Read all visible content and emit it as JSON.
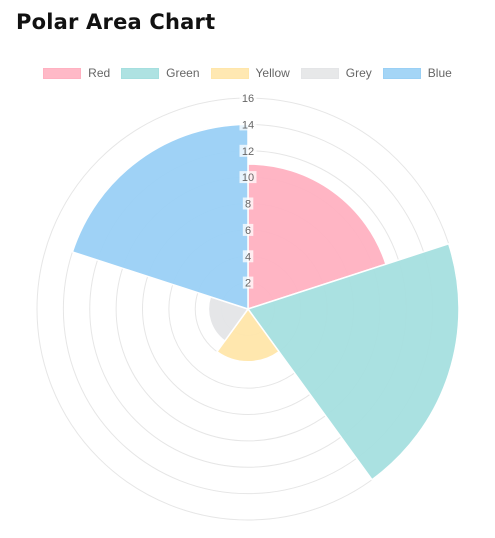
{
  "page": {
    "title": "Polar Area Chart"
  },
  "legend": [
    {
      "label": "Red",
      "color": "#ffb1c1"
    },
    {
      "label": "Green",
      "color": "#a5dfdf"
    },
    {
      "label": "Yellow",
      "color": "#ffe6aa"
    },
    {
      "label": "Grey",
      "color": "#e4e5e7"
    },
    {
      "label": "Blue",
      "color": "#9ad0f5"
    }
  ],
  "chart_data": {
    "type": "polar-area",
    "title": "Polar Area Chart",
    "categories": [
      "Red",
      "Green",
      "Yellow",
      "Grey",
      "Blue"
    ],
    "values": [
      11,
      16,
      4,
      3,
      14
    ],
    "colors": [
      "#ffb1c1",
      "#a5dfdf",
      "#ffe6aa",
      "#e4e5e7",
      "#9ad0f5"
    ],
    "radial_ticks": [
      "2",
      "4",
      "6",
      "8",
      "10",
      "12",
      "14",
      "16"
    ],
    "rlim": [
      0,
      16
    ],
    "start_angle": "top (12 o'clock), clockwise",
    "grid": true,
    "legend_position": "top"
  }
}
